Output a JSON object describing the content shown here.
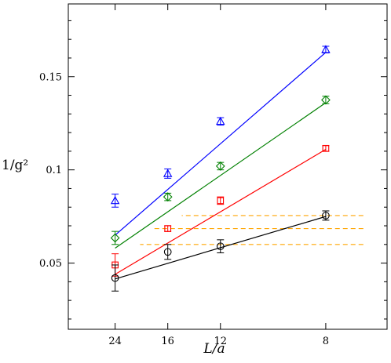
{
  "chart_data": {
    "type": "scatter",
    "title": "",
    "xlabel": "L/a",
    "ylabel": "1/g²",
    "x_scale": "reciprocal",
    "xlim": [
      43.2,
      6.7
    ],
    "ylim": [
      0.0145,
      0.189
    ],
    "x_ticks": [
      8,
      12,
      16,
      24
    ],
    "x_tick_labels": [
      "8",
      "12",
      "16",
      "24"
    ],
    "y_ticks": [
      0.05,
      0.1,
      0.15
    ],
    "y_tick_labels": [
      "0.05",
      "0.1",
      "0.15"
    ],
    "grid": false,
    "legend": "none",
    "series": [
      {
        "marker": "triangle",
        "color": "#0000ff",
        "points": [
          {
            "x": 8,
            "y": 0.1645,
            "err": 0.0018
          },
          {
            "x": 12,
            "y": 0.126,
            "err": 0.002
          },
          {
            "x": 16,
            "y": 0.098,
            "err": 0.0025
          },
          {
            "x": 24,
            "y": 0.0835,
            "err": 0.0035
          }
        ],
        "fit": {
          "x": [
            8,
            24
          ],
          "y": [
            0.163,
            0.065
          ]
        }
      },
      {
        "marker": "diamond",
        "color": "#008000",
        "points": [
          {
            "x": 8,
            "y": 0.1375,
            "err": 0.002
          },
          {
            "x": 12,
            "y": 0.102,
            "err": 0.002
          },
          {
            "x": 16,
            "y": 0.0855,
            "err": 0.002
          },
          {
            "x": 24,
            "y": 0.0635,
            "err": 0.0035
          }
        ],
        "fit": {
          "x": [
            8,
            24
          ],
          "y": [
            0.136,
            0.058
          ]
        }
      },
      {
        "marker": "square",
        "color": "#ff0000",
        "points": [
          {
            "x": 8,
            "y": 0.1115,
            "err": 0.0015
          },
          {
            "x": 12,
            "y": 0.0835,
            "err": 0.002
          },
          {
            "x": 16,
            "y": 0.0685,
            "err": 0.0015
          },
          {
            "x": 24,
            "y": 0.049,
            "err": 0.006
          }
        ],
        "fit": {
          "x": [
            8,
            24
          ],
          "y": [
            0.111,
            0.044
          ]
        }
      },
      {
        "marker": "circle",
        "color": "#000000",
        "points": [
          {
            "x": 8,
            "y": 0.0755,
            "err": 0.0025
          },
          {
            "x": 12,
            "y": 0.059,
            "err": 0.0035
          },
          {
            "x": 16,
            "y": 0.056,
            "err": 0.004
          },
          {
            "x": 24,
            "y": 0.042,
            "err": 0.007
          }
        ],
        "fit": {
          "x": [
            8,
            24
          ],
          "y": [
            0.075,
            0.0415
          ]
        }
      }
    ],
    "reference_lines": [
      {
        "style": "dashed",
        "color": "#ffa500",
        "y": 0.0755,
        "x_from": 7.15,
        "x_to": 14.7
      },
      {
        "style": "dashed",
        "color": "#ffa500",
        "y": 0.0685,
        "x_from": 7.15,
        "x_to": 17.6
      },
      {
        "style": "dashed",
        "color": "#ffa500",
        "y": 0.06,
        "x_from": 7.15,
        "x_to": 19.4
      }
    ]
  }
}
